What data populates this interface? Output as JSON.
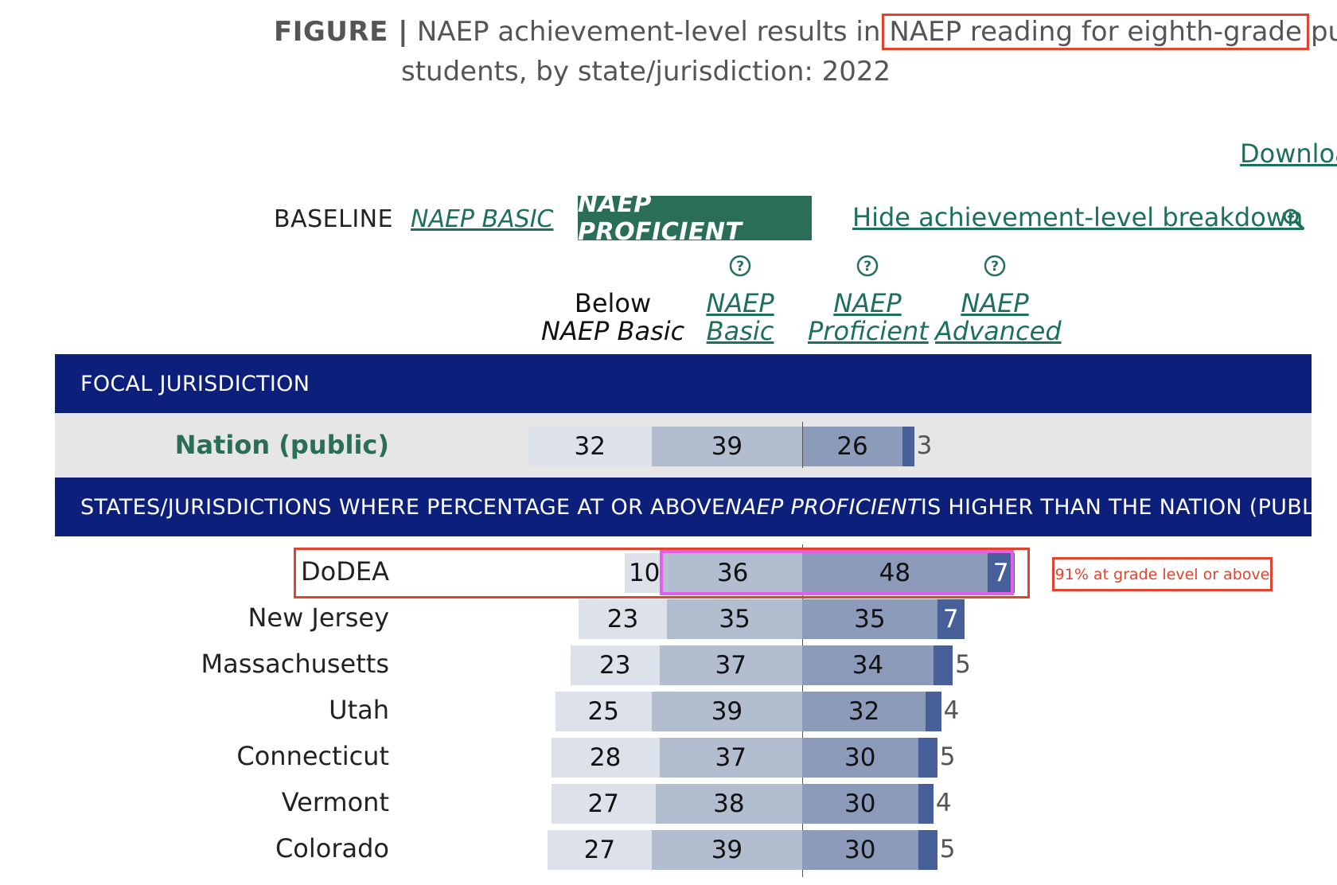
{
  "title": {
    "prefix": "FIGURE |",
    "part1": "NAEP achievement-level results in",
    "highlight": "NAEP reading for eighth-grade",
    "part2": "publi",
    "line2": "students, by state/jurisdiction: 2022"
  },
  "download_label": "Downloa",
  "tabs": {
    "baseline": "BASELINE",
    "naep_basic": "NAEP BASIC",
    "naep_proficient": "NAEP PROFICIENT",
    "hide_breakdown": "Hide achievement-level breakdown"
  },
  "column_headers": {
    "below_line1": "Below",
    "below_line2": "NAEP Basic",
    "basic_line1": "NAEP",
    "basic_line2": "Basic",
    "proficient_line1": "NAEP",
    "proficient_line2": "Proficient",
    "advanced_line1": "NAEP",
    "advanced_line2": "Advanced"
  },
  "bands": {
    "focal": "FOCAL JURISDICTION",
    "higher_pre": "STATES/JURISDICTIONS WHERE PERCENTAGE AT OR ABOVE ",
    "higher_em": "NAEP PROFICIENT",
    "higher_post": " IS HIGHER THAN THE NATION (PUBLIC)"
  },
  "annotation": "91% at grade level or above",
  "colors": {
    "below": "#dde1ea",
    "basic": "#b3bdd0",
    "proficient": "#8d9bba",
    "advanced": "#48609a",
    "band": "#0c1f7a",
    "accent_green": "#2b6e58",
    "highlight_red": "#e0442e",
    "highlight_pink": "#e45ce9"
  },
  "icons": {
    "help": "question-circle-icon",
    "zoom": "magnifier-plus-icon"
  },
  "chart_data": {
    "type": "bar",
    "orientation": "horizontal-stacked-diverging",
    "series_order": [
      "Below NAEP Basic",
      "NAEP Basic",
      "NAEP Proficient",
      "NAEP Advanced"
    ],
    "nation": {
      "name": "Nation (public)",
      "values": [
        32,
        39,
        26,
        3
      ]
    },
    "rows": [
      {
        "name": "DoDEA",
        "values": [
          10,
          36,
          48,
          7
        ]
      },
      {
        "name": "New Jersey",
        "values": [
          23,
          35,
          35,
          7
        ]
      },
      {
        "name": "Massachusetts",
        "values": [
          23,
          37,
          34,
          5
        ]
      },
      {
        "name": "Utah",
        "values": [
          25,
          39,
          32,
          4
        ]
      },
      {
        "name": "Connecticut",
        "values": [
          28,
          37,
          30,
          5
        ]
      },
      {
        "name": "Vermont",
        "values": [
          27,
          38,
          30,
          4
        ]
      },
      {
        "name": "Colorado",
        "values": [
          27,
          39,
          30,
          5
        ]
      }
    ]
  }
}
